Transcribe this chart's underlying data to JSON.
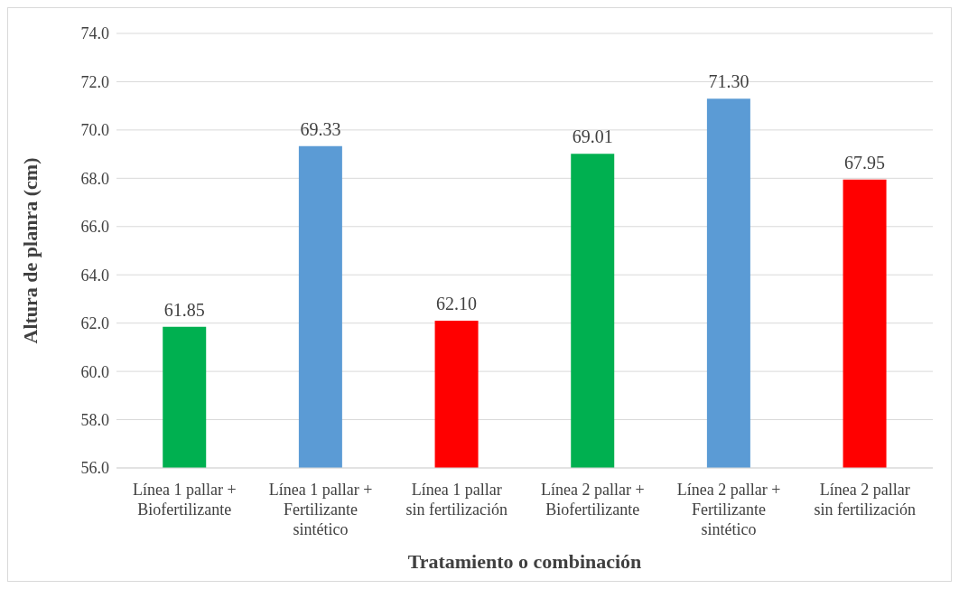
{
  "chart_data": {
    "type": "bar",
    "xlabel": "Tratamiento o combinación",
    "ylabel": "Altura de planra (cm)",
    "categories": [
      "Línea 1 pallar + Biofertilizante",
      "Línea 1 pallar + Fertilizante sintético",
      "Línea 1 pallar sin fertilización",
      "Línea 2 pallar + Biofertilizante",
      "Línea 2 pallar + Fertilizante sintético",
      "Línea 2 pallar sin fertilización"
    ],
    "values": [
      61.85,
      69.33,
      62.1,
      69.01,
      71.3,
      67.95
    ],
    "colors": [
      "#00b050",
      "#5b9bd5",
      "#ff0000",
      "#00b050",
      "#5b9bd5",
      "#ff0000"
    ],
    "value_labels": [
      "61.85",
      "69.33",
      "62.10",
      "69.01",
      "71.30",
      "67.95"
    ],
    "ylim": [
      56,
      74
    ],
    "yticks": [
      {
        "value": 56,
        "label": "56.0"
      },
      {
        "value": 58,
        "label": "58.0"
      },
      {
        "value": 60,
        "label": "60.0"
      },
      {
        "value": 62,
        "label": "62.0"
      },
      {
        "value": 64,
        "label": "64.0"
      },
      {
        "value": 66,
        "label": "66.0"
      },
      {
        "value": 68,
        "label": "68.0"
      },
      {
        "value": 70,
        "label": "70.0"
      },
      {
        "value": 72,
        "label": "72.0"
      },
      {
        "value": 74,
        "label": "74.0"
      }
    ],
    "grid": "y",
    "legend": false
  }
}
